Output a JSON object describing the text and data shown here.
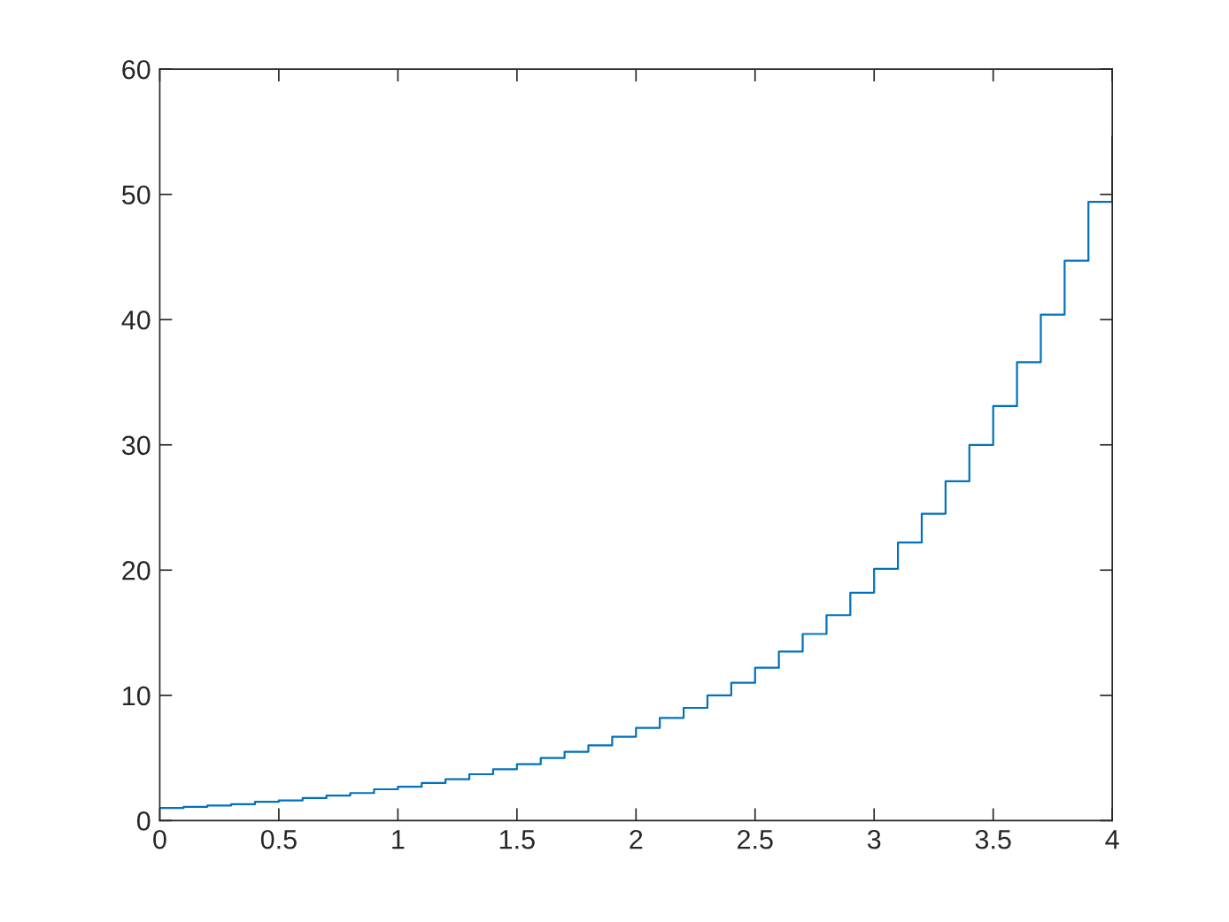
{
  "chart_data": {
    "type": "step",
    "x": [
      0,
      0.1,
      0.2,
      0.3,
      0.4,
      0.5,
      0.6,
      0.7,
      0.8,
      0.9,
      1,
      1.1,
      1.2,
      1.3,
      1.4,
      1.5,
      1.6,
      1.7,
      1.8,
      1.9,
      2,
      2.1,
      2.2,
      2.3,
      2.4,
      2.5,
      2.6,
      2.7,
      2.8,
      2.9,
      3,
      3.1,
      3.2,
      3.3,
      3.4,
      3.5,
      3.6,
      3.7,
      3.8,
      3.9,
      4
    ],
    "series": [
      {
        "color": "#0072bd",
        "values": [
          1.0,
          1.1,
          1.2,
          1.3,
          1.5,
          1.6,
          1.8,
          2.0,
          2.2,
          2.5,
          2.7,
          3.0,
          3.3,
          3.7,
          4.1,
          4.5,
          5.0,
          5.5,
          6.0,
          6.7,
          7.4,
          8.2,
          9.0,
          10.0,
          11.0,
          12.2,
          13.5,
          14.9,
          16.4,
          18.2,
          20.1,
          22.2,
          24.5,
          27.1,
          30.0,
          33.1,
          36.6,
          40.4,
          44.7,
          49.4,
          54.6
        ]
      }
    ],
    "xlim": [
      0,
      4
    ],
    "ylim": [
      0,
      60
    ],
    "xticks": [
      0,
      0.5,
      1,
      1.5,
      2,
      2.5,
      3,
      3.5,
      4
    ],
    "yticks": [
      0,
      10,
      20,
      30,
      40,
      50,
      60
    ],
    "grid": false
  }
}
